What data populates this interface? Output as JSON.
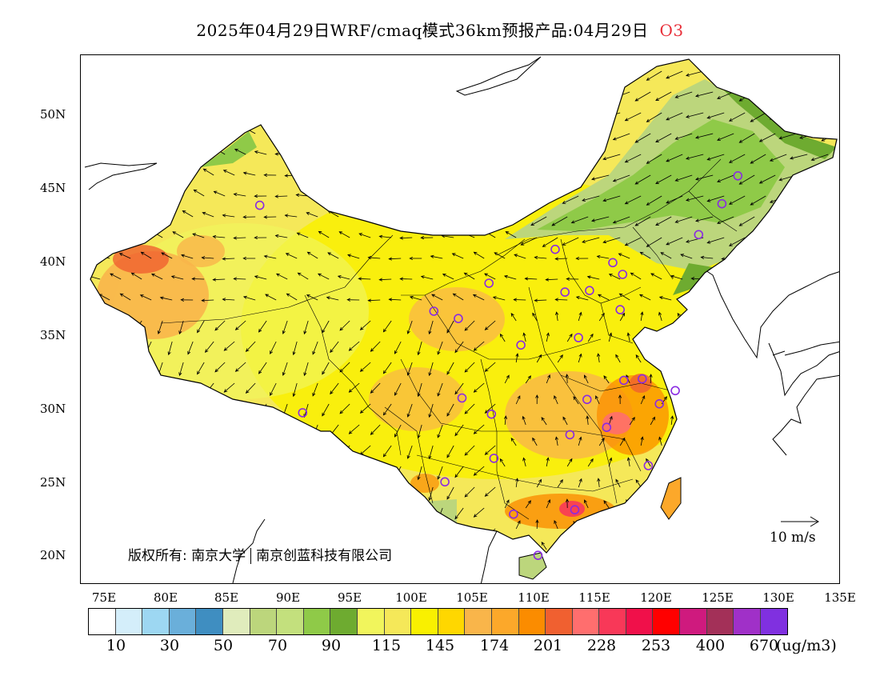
{
  "title": {
    "text": "2025年04月29日WRF/cmaq模式36km预报产品:04月29日",
    "pollutant": "O3"
  },
  "copyright": {
    "owner": "版权所有: 南京大学",
    "company": "南京创蓝科技有限公司"
  },
  "wind_reference": {
    "label": "10 m/s"
  },
  "axes": {
    "lat_labels": [
      "50N",
      "45N",
      "40N",
      "35N",
      "30N",
      "25N",
      "20N"
    ],
    "lon_labels": [
      "75E",
      "80E",
      "85E",
      "90E",
      "95E",
      "100E",
      "105E",
      "110E",
      "115E",
      "120E",
      "125E",
      "130E",
      "135E"
    ]
  },
  "colorbar": {
    "colors": [
      "#ffffff",
      "#d4eefa",
      "#9dd7f2",
      "#6aafda",
      "#3f8ec1",
      "#e0ecbc",
      "#bcd67c",
      "#c3e07d",
      "#8fca48",
      "#6eab30",
      "#f1f55c",
      "#f5e859",
      "#f9f000",
      "#ffd700",
      "#f9b54a",
      "#fca82a",
      "#fb8c00",
      "#f06030",
      "#ff6e6e",
      "#f83858",
      "#f0104a",
      "#ff0000",
      "#cf1a7e",
      "#a33058",
      "#a030c8",
      "#8030e0"
    ],
    "labels": [
      "10",
      "30",
      "50",
      "70",
      "90",
      "115",
      "145",
      "174",
      "201",
      "228",
      "253",
      "400",
      "670"
    ],
    "unit": "(ug/m3)"
  },
  "map": {
    "lon_range": [
      73,
      135
    ],
    "lat_range": [
      18,
      54
    ],
    "sites": [
      {
        "lon": 87.6,
        "lat": 43.8
      },
      {
        "lon": 111.7,
        "lat": 40.8
      },
      {
        "lon": 116.4,
        "lat": 39.9
      },
      {
        "lon": 117.2,
        "lat": 39.1
      },
      {
        "lon": 114.5,
        "lat": 38.0
      },
      {
        "lon": 112.5,
        "lat": 37.9
      },
      {
        "lon": 106.3,
        "lat": 38.5
      },
      {
        "lon": 101.8,
        "lat": 36.6
      },
      {
        "lon": 103.8,
        "lat": 36.1
      },
      {
        "lon": 117.0,
        "lat": 36.7
      },
      {
        "lon": 108.9,
        "lat": 34.3
      },
      {
        "lon": 113.6,
        "lat": 34.8
      },
      {
        "lon": 117.3,
        "lat": 31.9
      },
      {
        "lon": 118.8,
        "lat": 32.0
      },
      {
        "lon": 121.5,
        "lat": 31.2
      },
      {
        "lon": 120.2,
        "lat": 30.3
      },
      {
        "lon": 114.3,
        "lat": 30.6
      },
      {
        "lon": 104.1,
        "lat": 30.7
      },
      {
        "lon": 106.5,
        "lat": 29.6
      },
      {
        "lon": 91.1,
        "lat": 29.7
      },
      {
        "lon": 112.9,
        "lat": 28.2
      },
      {
        "lon": 115.9,
        "lat": 28.7
      },
      {
        "lon": 106.7,
        "lat": 26.6
      },
      {
        "lon": 119.3,
        "lat": 26.1
      },
      {
        "lon": 102.7,
        "lat": 25.0
      },
      {
        "lon": 113.3,
        "lat": 23.1
      },
      {
        "lon": 108.3,
        "lat": 22.8
      },
      {
        "lon": 110.3,
        "lat": 20.0
      },
      {
        "lon": 123.4,
        "lat": 41.8
      },
      {
        "lon": 125.3,
        "lat": 43.9
      },
      {
        "lon": 126.6,
        "lat": 45.8
      }
    ]
  }
}
